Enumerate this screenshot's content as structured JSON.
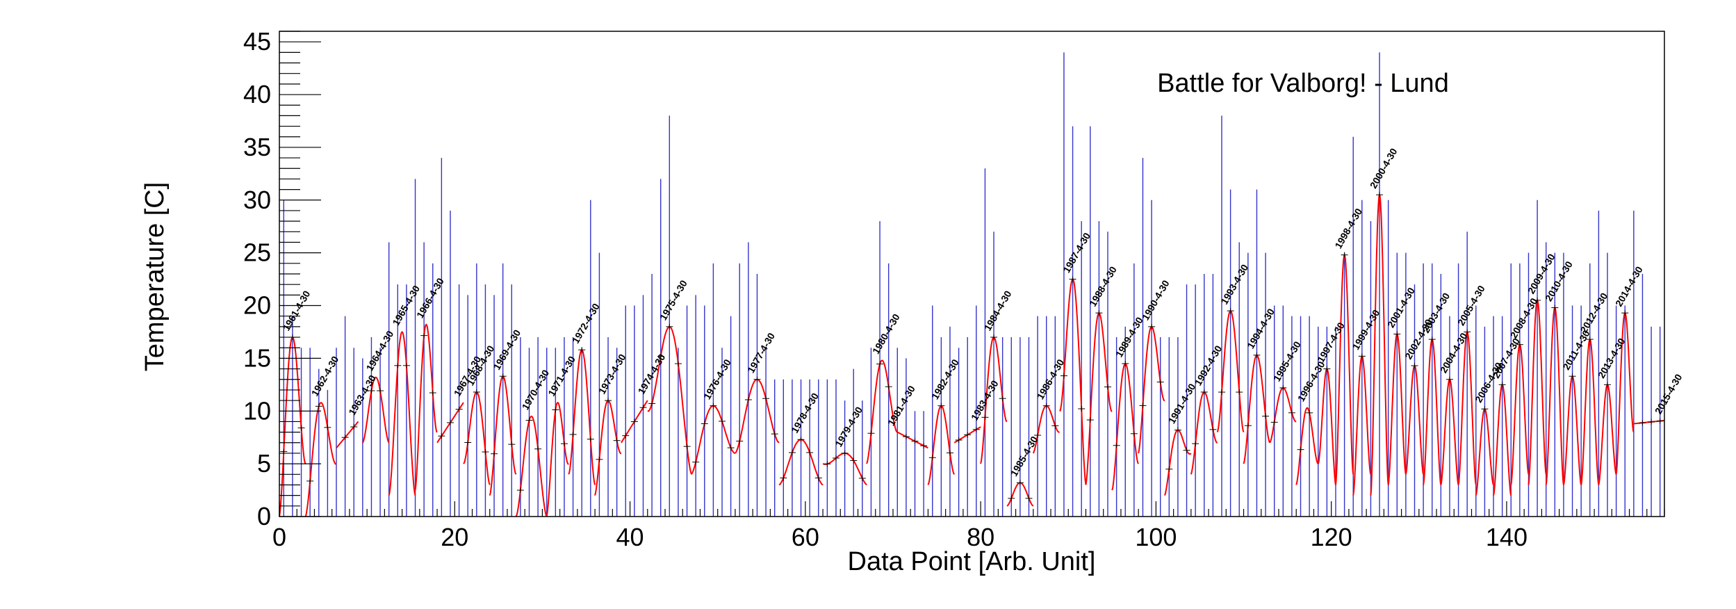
{
  "chart_data": {
    "type": "line",
    "title": "Battle for Valborg! - Lund",
    "xlabel": "Data Point [Arb. Unit]",
    "ylabel": "Temperature [C]",
    "xlim": [
      0,
      158
    ],
    "ylim": [
      0,
      46
    ],
    "xticks": [
      0,
      20,
      40,
      60,
      80,
      100,
      120,
      140
    ],
    "yticks": [
      0,
      5,
      10,
      15,
      20,
      25,
      30,
      35,
      40,
      45
    ],
    "grid": false,
    "legend": "none",
    "colors": {
      "bars": "#3333cc",
      "fit": "#ff0000",
      "points": "#000000"
    },
    "bars": [
      30,
      19,
      16,
      16,
      14,
      12,
      16,
      19,
      16,
      15,
      17,
      16,
      26,
      22,
      22,
      32,
      26,
      24,
      34,
      29,
      22,
      21,
      24,
      22,
      21,
      24,
      22,
      17,
      16,
      17,
      16,
      16,
      17,
      17,
      16,
      30,
      25,
      17,
      16,
      20,
      20,
      21,
      23,
      32,
      38,
      16,
      20,
      21,
      20,
      24,
      16,
      19,
      24,
      26,
      23,
      16,
      13,
      13,
      13,
      13,
      13,
      13,
      13,
      13,
      11,
      14,
      11,
      16,
      28,
      24,
      16,
      15,
      10,
      10,
      20,
      17,
      18,
      16,
      17,
      20,
      33,
      27,
      17,
      17,
      17,
      17,
      19,
      19,
      19,
      44,
      37,
      28,
      37,
      28,
      27,
      17,
      18,
      24,
      34,
      30,
      17,
      17,
      17,
      22,
      22,
      23,
      23,
      38,
      31,
      26,
      25,
      31,
      25,
      20,
      20,
      19,
      19,
      19,
      18,
      18,
      18,
      25,
      36,
      30,
      28,
      44,
      30,
      25,
      25,
      22,
      24,
      24,
      23,
      19,
      24,
      27,
      20,
      18,
      19,
      19,
      24,
      24,
      25,
      30,
      26,
      25,
      25,
      20,
      20,
      24,
      29,
      25,
      20,
      20,
      29,
      23,
      18,
      18
    ],
    "segments": [
      {
        "label": "1961-4-30",
        "start": 0,
        "end": 3,
        "baseline": 0,
        "peak": 17,
        "tail": 5
      },
      {
        "label": "1962-4-30",
        "start": 3,
        "end": 6.5,
        "baseline": 0,
        "peak": 10.8,
        "tail": 5
      },
      {
        "label": "1963-4-30",
        "start": 6.5,
        "end": 9,
        "baseline": 6.5,
        "peak": 9,
        "ramp": true
      },
      {
        "label": "1964-4-30",
        "start": 9.5,
        "end": 12.5,
        "baseline": 7,
        "peak": 13.2,
        "tail": 7
      },
      {
        "label": "1965-4-30",
        "start": 12.5,
        "end": 15.5,
        "baseline": 2,
        "peak": 17.5,
        "tail": 2
      },
      {
        "label": "1966-4-30",
        "start": 15.5,
        "end": 18,
        "baseline": 2.5,
        "peak": 18.2,
        "tail": 8
      },
      {
        "label": "1967-4-30",
        "start": 18,
        "end": 21,
        "baseline": 7,
        "peak": 10.8,
        "ramp": true
      },
      {
        "label": "1968-4-30",
        "start": 21,
        "end": 24,
        "baseline": 5,
        "peak": 11.8,
        "tail": 3
      },
      {
        "label": "1969-4-30",
        "start": 24,
        "end": 27,
        "baseline": 2,
        "peak": 13.3,
        "tail": 4
      },
      {
        "label": "1970-4-30",
        "start": 27,
        "end": 30.5,
        "baseline": 0,
        "peak": 9.5,
        "tail": 0
      },
      {
        "label": "1971-4-30",
        "start": 30.5,
        "end": 33,
        "baseline": 0,
        "peak": 10.8,
        "tail": 5
      },
      {
        "label": "1972-4-30",
        "start": 33,
        "end": 36,
        "baseline": 4,
        "peak": 15.8,
        "tail": 3
      },
      {
        "label": "1973-4-30",
        "start": 36,
        "end": 39,
        "baseline": 2,
        "peak": 11,
        "tail": 6
      },
      {
        "label": "1974-4-30",
        "start": 39,
        "end": 42,
        "baseline": 7,
        "peak": 11,
        "ramp": true
      },
      {
        "label": "1975-4-30",
        "start": 42,
        "end": 47,
        "baseline": 10,
        "peak": 18,
        "tail": 4
      },
      {
        "label": "1976-4-30",
        "start": 47,
        "end": 52,
        "baseline": 4,
        "peak": 10.5,
        "tail": 6
      },
      {
        "label": "1977-4-30",
        "start": 52,
        "end": 57,
        "baseline": 6,
        "peak": 13,
        "tail": 7
      },
      {
        "label": "1978-4-30",
        "start": 57,
        "end": 62,
        "baseline": 3,
        "peak": 7.3,
        "tail": 3
      },
      {
        "label": "1979-4-30",
        "start": 62,
        "end": 67,
        "baseline": 5,
        "peak": 6,
        "tail": 3
      },
      {
        "label": "1980-4-30",
        "start": 67,
        "end": 70.5,
        "baseline": 5,
        "peak": 14.8,
        "tail": 8
      },
      {
        "label": "1981-4-30",
        "start": 70.5,
        "end": 74,
        "baseline": 8,
        "peak": 6.5,
        "ramp": true
      },
      {
        "label": "1982-4-30",
        "start": 74,
        "end": 77,
        "baseline": 3,
        "peak": 10.5,
        "tail": 4
      },
      {
        "label": "1983-4-30",
        "start": 77,
        "end": 80,
        "baseline": 7,
        "peak": 8.5,
        "ramp": true
      },
      {
        "label": "1984-4-30",
        "start": 80,
        "end": 83,
        "baseline": 5,
        "peak": 17,
        "tail": 9
      },
      {
        "label": "1985-4-30",
        "start": 83,
        "end": 86,
        "baseline": 1,
        "peak": 3.2,
        "tail": 1
      },
      {
        "label": "1986-4-30",
        "start": 86,
        "end": 89,
        "baseline": 6,
        "peak": 10.5,
        "tail": 8
      },
      {
        "label": "1987-4-30",
        "start": 89,
        "end": 92,
        "baseline": 10,
        "peak": 22.5,
        "tail": 3
      },
      {
        "label": "1988-4-30",
        "start": 92,
        "end": 95,
        "baseline": 3,
        "peak": 19.3,
        "tail": 10
      },
      {
        "label": "1989-4-30",
        "start": 95,
        "end": 98,
        "baseline": 2.5,
        "peak": 14.5,
        "tail": 5
      },
      {
        "label": "1990-4-30",
        "start": 98,
        "end": 101,
        "baseline": 6,
        "peak": 18,
        "tail": 11
      },
      {
        "label": "1991-4-30",
        "start": 101,
        "end": 104,
        "baseline": 2,
        "peak": 8.2,
        "tail": 6
      },
      {
        "label": "1992-4-30",
        "start": 104,
        "end": 107,
        "baseline": 4,
        "peak": 11.8,
        "tail": 7
      },
      {
        "label": "1993-4-30",
        "start": 107,
        "end": 110,
        "baseline": 8,
        "peak": 19.5,
        "tail": 8
      },
      {
        "label": "1994-4-30",
        "start": 110,
        "end": 113,
        "baseline": 5,
        "peak": 15.3,
        "tail": 7
      },
      {
        "label": "1995-4-30",
        "start": 113,
        "end": 116,
        "baseline": 7,
        "peak": 12.2,
        "tail": 9
      },
      {
        "label": "1996-4-30",
        "start": 116,
        "end": 118.5,
        "baseline": 3,
        "peak": 10.3,
        "tail": 5
      },
      {
        "label": "1997-4-30",
        "start": 118.5,
        "end": 120.5,
        "baseline": 5,
        "peak": 14,
        "tail": 3
      },
      {
        "label": "1998-4-30",
        "start": 120.5,
        "end": 122.5,
        "baseline": 3,
        "peak": 24.8,
        "tail": 4
      },
      {
        "label": "1999-4-30",
        "start": 122.5,
        "end": 124.5,
        "baseline": 2,
        "peak": 15.2,
        "tail": 4
      },
      {
        "label": "2000-4-30",
        "start": 124.5,
        "end": 126.5,
        "baseline": 2,
        "peak": 30.5,
        "tail": 3
      },
      {
        "label": "2001-4-30",
        "start": 126.5,
        "end": 128.5,
        "baseline": 3,
        "peak": 17.3,
        "tail": 4
      },
      {
        "label": "2002-4-30",
        "start": 128.5,
        "end": 130.5,
        "baseline": 4,
        "peak": 14.3,
        "tail": 4
      },
      {
        "label": "2003-4-30",
        "start": 130.5,
        "end": 132.5,
        "baseline": 3,
        "peak": 16.8,
        "tail": 3
      },
      {
        "label": "2004-4-30",
        "start": 132.5,
        "end": 134.5,
        "baseline": 3,
        "peak": 13,
        "tail": 3
      },
      {
        "label": "2005-4-30",
        "start": 134.5,
        "end": 136.5,
        "baseline": 3,
        "peak": 17.5,
        "tail": 3
      },
      {
        "label": "2006-4-30",
        "start": 136.5,
        "end": 138.5,
        "baseline": 2,
        "peak": 10.2,
        "tail": 3
      },
      {
        "label": "2007-4-30",
        "start": 138.5,
        "end": 140.5,
        "baseline": 2,
        "peak": 12.5,
        "tail": 2
      },
      {
        "label": "2008-4-30",
        "start": 140.5,
        "end": 142.5,
        "baseline": 3,
        "peak": 16.3,
        "tail": 4
      },
      {
        "label": "2009-4-30",
        "start": 142.5,
        "end": 144.5,
        "baseline": 3,
        "peak": 20.5,
        "tail": 4
      },
      {
        "label": "2010-4-30",
        "start": 144.5,
        "end": 146.5,
        "baseline": 3,
        "peak": 19.8,
        "tail": 3
      },
      {
        "label": "2011-4-30",
        "start": 146.5,
        "end": 148.5,
        "baseline": 3,
        "peak": 13.3,
        "tail": 3
      },
      {
        "label": "2012-4-30",
        "start": 148.5,
        "end": 150.5,
        "baseline": 3,
        "peak": 16.8,
        "tail": 3
      },
      {
        "label": "2013-4-30",
        "start": 150.5,
        "end": 152.5,
        "baseline": 3,
        "peak": 12.5,
        "tail": 4
      },
      {
        "label": "2014-4-30",
        "start": 152.5,
        "end": 154.5,
        "baseline": 4,
        "peak": 19.3,
        "tail": 8
      },
      {
        "label": "2015-4-30",
        "start": 154.5,
        "end": 158,
        "baseline": 8.8,
        "peak": 9.1,
        "ramp": true
      }
    ]
  }
}
